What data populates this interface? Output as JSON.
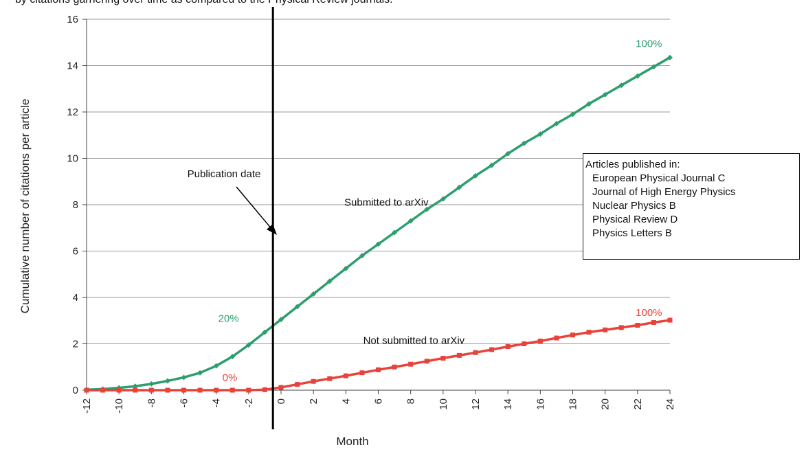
{
  "header_text": "by citations garnering over time as compared to the Physical Review journals.",
  "chart_data": {
    "type": "line",
    "xlabel": "Month",
    "ylabel": "Cumulative number of citations per article",
    "xlim": [
      -12,
      24
    ],
    "ylim": [
      0,
      16
    ],
    "xticks": [
      -12,
      -10,
      -8,
      -6,
      -4,
      -2,
      0,
      2,
      4,
      6,
      8,
      10,
      12,
      14,
      16,
      18,
      20,
      22,
      24
    ],
    "yticks": [
      0,
      2,
      4,
      6,
      8,
      10,
      12,
      14,
      16
    ],
    "grid": "horizontal",
    "series": [
      {
        "name": "Submitted to arXiv",
        "color": "#2e9e6e",
        "marker": "diamond",
        "x": [
          -12,
          -11,
          -10,
          -9,
          -8,
          -7,
          -6,
          -5,
          -4,
          -3,
          -2,
          -1,
          0,
          1,
          2,
          3,
          4,
          5,
          6,
          7,
          8,
          9,
          10,
          11,
          12,
          13,
          14,
          15,
          16,
          17,
          18,
          19,
          20,
          21,
          22,
          23,
          24
        ],
        "y": [
          0.02,
          0.05,
          0.1,
          0.17,
          0.27,
          0.4,
          0.55,
          0.75,
          1.05,
          1.45,
          1.95,
          2.5,
          3.05,
          3.6,
          4.15,
          4.7,
          5.25,
          5.8,
          6.3,
          6.8,
          7.3,
          7.8,
          8.25,
          8.75,
          9.25,
          9.7,
          10.2,
          10.65,
          11.05,
          11.5,
          11.9,
          12.35,
          12.75,
          13.15,
          13.55,
          13.95,
          14.35
        ]
      },
      {
        "name": "Not submitted to arXiv",
        "color": "#e8423a",
        "marker": "square",
        "x": [
          -12,
          -11,
          -10,
          -9,
          -8,
          -7,
          -6,
          -5,
          -4,
          -3,
          -2,
          -1,
          0,
          1,
          2,
          3,
          4,
          5,
          6,
          7,
          8,
          9,
          10,
          11,
          12,
          13,
          14,
          15,
          16,
          17,
          18,
          19,
          20,
          21,
          22,
          23,
          24
        ],
        "y": [
          0,
          0,
          0,
          0,
          0,
          0,
          0,
          0,
          0,
          0,
          0,
          0.02,
          0.12,
          0.25,
          0.38,
          0.5,
          0.62,
          0.75,
          0.88,
          1.0,
          1.12,
          1.25,
          1.38,
          1.5,
          1.62,
          1.75,
          1.88,
          2.0,
          2.12,
          2.25,
          2.38,
          2.5,
          2.6,
          2.7,
          2.8,
          2.92,
          3.02
        ]
      }
    ],
    "vertical_line": {
      "x": -0.5,
      "label": "Publication date"
    },
    "annotations": [
      {
        "text": "Submitted to arXiv",
        "x": 6.5,
        "y": 8.1,
        "anchor": "middle"
      },
      {
        "text": "Not submitted to arXiv",
        "x": 8.2,
        "y": 2.15,
        "anchor": "middle"
      },
      {
        "text": "20%",
        "x": -2.6,
        "y": 3.1,
        "anchor": "end",
        "color": "#2e9e6e"
      },
      {
        "text": "100%",
        "x": 22.7,
        "y": 14.95,
        "anchor": "middle",
        "color": "#2e9e6e"
      },
      {
        "text": "0%",
        "x": -2.7,
        "y": 0.55,
        "anchor": "end",
        "color": "#e8423a"
      },
      {
        "text": "100%",
        "x": 22.7,
        "y": 3.35,
        "anchor": "middle",
        "color": "#e8423a"
      }
    ],
    "legend": {
      "placement": "right",
      "title": "Articles published in:",
      "items": [
        "European Physical Journal C",
        "Journal of High Energy Physics",
        "Nuclear Physics B",
        "Physical Review D",
        "Physics Letters B"
      ]
    }
  }
}
